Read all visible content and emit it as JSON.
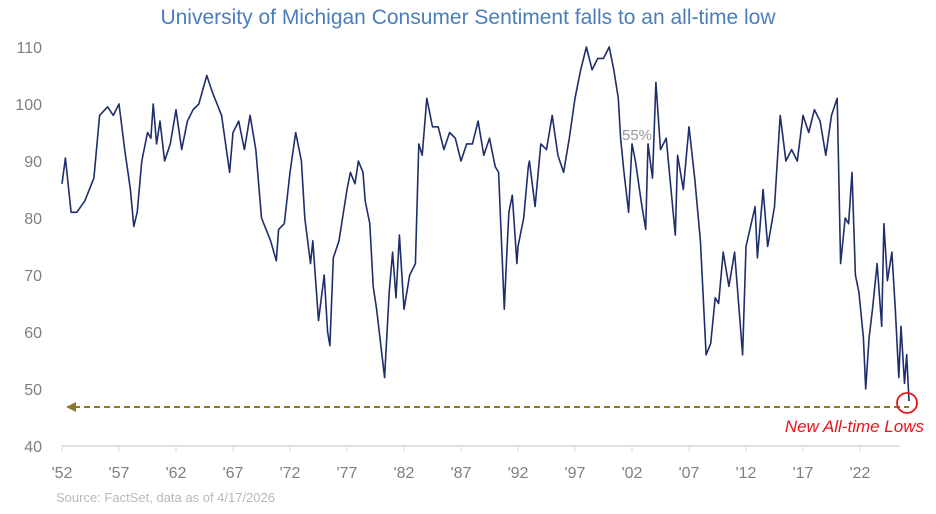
{
  "chart_data": {
    "type": "line",
    "title": "University of Michigan Consumer Sentiment falls to an all-time low",
    "source": "Source: FactSet, data as of 4/17/2026",
    "xlabel": "",
    "ylabel": "",
    "xlim": [
      1952,
      2026.5
    ],
    "ylim": [
      40,
      110
    ],
    "grid": false,
    "x_ticks": [
      "'52",
      "'57",
      "'62",
      "'67",
      "'72",
      "'77",
      "'82",
      "'87",
      "'92",
      "'97",
      "'02",
      "'07",
      "'12",
      "'17",
      "'22"
    ],
    "y_ticks": [
      40,
      50,
      60,
      70,
      80,
      90,
      100,
      110
    ],
    "line_color": "#1f2d6b",
    "annotations": {
      "low_label": "New All-time Lows",
      "low_label_color": "#e8141b",
      "stray_label": "55%",
      "reference_line_value": 47.9,
      "reference_line_color": "#8b7a2e"
    },
    "series": [
      {
        "x": [
          1952,
          1952.3,
          1952.8,
          1953.3,
          1954,
          1954.8,
          1955.3,
          1956,
          1956.5,
          1957,
          1957.5,
          1958,
          1958.3,
          1958.6,
          1959,
          1959.5,
          1959.8,
          1960,
          1960.3,
          1960.6,
          1961,
          1961.5,
          1962,
          1962.5,
          1963,
          1963.5,
          1964,
          1964.7,
          1965.2,
          1966,
          1966.7,
          1967,
          1967.5,
          1968,
          1968.5,
          1969,
          1969.5,
          1970.3,
          1970.8,
          1971,
          1971.5,
          1972,
          1972.5,
          1973,
          1973.3,
          1973.8,
          1974,
          1974.5,
          1975,
          1975.3,
          1975.5,
          1975.8,
          1976.3,
          1977,
          1977.3,
          1977.7,
          1978,
          1978.4,
          1978.6,
          1979,
          1979.3,
          1979.6,
          1980.3,
          1980.7,
          1981,
          1981.3,
          1981.6,
          1982,
          1982.5,
          1983,
          1983.3,
          1983.6,
          1984,
          1984.5,
          1985,
          1985.5,
          1986,
          1986.5,
          1987,
          1987.5,
          1988,
          1988.5,
          1989,
          1989.5,
          1990,
          1990.3,
          1990.8,
          1991,
          1991.2,
          1991.5,
          1991.9,
          1992,
          1992.5,
          1992.9,
          1993,
          1993.5,
          1994,
          1994.5,
          1995,
          1995.5,
          1996,
          1996.5,
          1997,
          1997.5,
          1998,
          1998.5,
          1999,
          1999.5,
          2000,
          2000.4,
          2000.8,
          2001,
          2001.3,
          2001.7,
          2002,
          2002.3,
          2002.8,
          2003.2,
          2003.4,
          2003.8,
          2004.1,
          2004.5,
          2005,
          2005.8,
          2006,
          2006.5,
          2007,
          2007.5,
          2008,
          2008.5,
          2008.9,
          2009.3,
          2009.6,
          2010,
          2010.5,
          2011,
          2011.7,
          2012,
          2012.8,
          2013,
          2013.5,
          2013.9,
          2014.5,
          2015,
          2015.5,
          2016,
          2016.5,
          2017,
          2017.5,
          2018,
          2018.5,
          2019,
          2019.5,
          2020,
          2020.3,
          2020.7,
          2021,
          2021.3,
          2021.6,
          2021.9,
          2022.3,
          2022.5,
          2022.8,
          2023.1,
          2023.5,
          2023.9,
          2024.1,
          2024.4,
          2024.8,
          2025.1,
          2025.4,
          2025.6,
          2025.9,
          2026.1,
          2026.3
        ],
        "values": [
          86,
          90.5,
          81,
          81,
          83,
          87,
          98,
          99.5,
          98,
          100,
          92,
          85,
          78.5,
          81,
          90,
          95,
          94,
          100,
          93,
          97,
          90,
          93,
          99,
          92,
          97,
          99,
          100,
          105,
          102,
          98,
          88,
          95,
          97,
          92,
          98,
          92,
          80,
          76,
          72.5,
          78,
          79,
          88,
          95,
          90,
          80,
          72,
          76,
          62,
          70,
          60,
          57.6,
          73,
          76,
          85,
          88,
          86,
          90,
          88,
          83,
          79,
          68,
          64,
          52,
          67,
          74,
          66,
          77,
          64,
          70,
          72,
          93,
          91,
          101,
          96,
          96,
          92,
          95,
          94,
          90,
          93,
          93,
          97,
          91,
          94,
          89,
          88,
          64,
          73,
          81,
          84,
          72,
          75,
          80,
          89,
          90,
          82,
          93,
          92,
          98,
          91,
          88,
          94,
          101,
          106,
          110,
          106,
          108,
          108,
          110,
          106,
          101,
          94,
          88,
          81,
          93,
          90,
          83,
          78,
          93,
          87,
          103.8,
          92,
          94,
          77,
          91,
          85,
          96,
          87,
          76,
          56,
          58,
          66,
          65,
          74,
          68,
          74,
          56,
          75,
          82,
          73,
          85,
          75,
          82,
          98,
          90,
          92,
          90,
          98,
          95,
          99,
          97,
          91,
          98,
          101,
          72,
          80,
          79,
          88,
          70,
          67,
          59,
          50,
          59,
          64,
          72,
          61,
          79,
          69,
          74,
          64,
          52,
          61,
          51,
          56,
          47.9
        ]
      }
    ]
  }
}
